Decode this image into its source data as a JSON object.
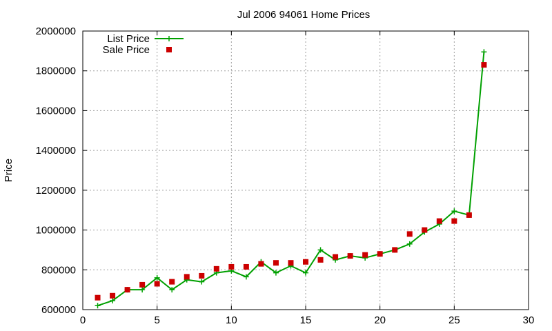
{
  "chart_data": {
    "type": "line",
    "title": "Jul 2006 94061 Home Prices",
    "xlabel": "",
    "ylabel": "Price",
    "xlim": [
      0,
      30
    ],
    "ylim": [
      600000,
      2000000
    ],
    "x_ticks": [
      0,
      5,
      10,
      15,
      20,
      25,
      30
    ],
    "y_ticks": [
      600000,
      800000,
      1000000,
      1200000,
      1400000,
      1600000,
      1800000,
      2000000
    ],
    "grid": true,
    "legend_position": "top-left",
    "series": [
      {
        "name": "List Price",
        "style": "line-with-plus-markers",
        "color": "#00a000",
        "x": [
          1,
          2,
          3,
          4,
          5,
          6,
          7,
          8,
          9,
          10,
          11,
          12,
          13,
          14,
          15,
          16,
          17,
          18,
          19,
          20,
          21,
          22,
          23,
          24,
          25,
          26,
          27
        ],
        "values": [
          620000,
          645000,
          700000,
          700000,
          760000,
          700000,
          750000,
          740000,
          785000,
          795000,
          765000,
          840000,
          785000,
          820000,
          785000,
          900000,
          850000,
          870000,
          860000,
          880000,
          900000,
          930000,
          990000,
          1030000,
          1095000,
          1075000,
          1895000
        ]
      },
      {
        "name": "Sale Price",
        "style": "square-points",
        "color": "#cc0000",
        "x": [
          1,
          2,
          3,
          4,
          5,
          6,
          7,
          8,
          9,
          10,
          11,
          12,
          13,
          14,
          15,
          16,
          17,
          18,
          19,
          20,
          21,
          22,
          23,
          24,
          25,
          26,
          27
        ],
        "values": [
          660000,
          670000,
          700000,
          725000,
          730000,
          740000,
          765000,
          770000,
          805000,
          815000,
          815000,
          830000,
          835000,
          835000,
          840000,
          850000,
          865000,
          870000,
          875000,
          880000,
          900000,
          980000,
          1000000,
          1045000,
          1045000,
          1075000,
          1830000
        ]
      }
    ]
  }
}
